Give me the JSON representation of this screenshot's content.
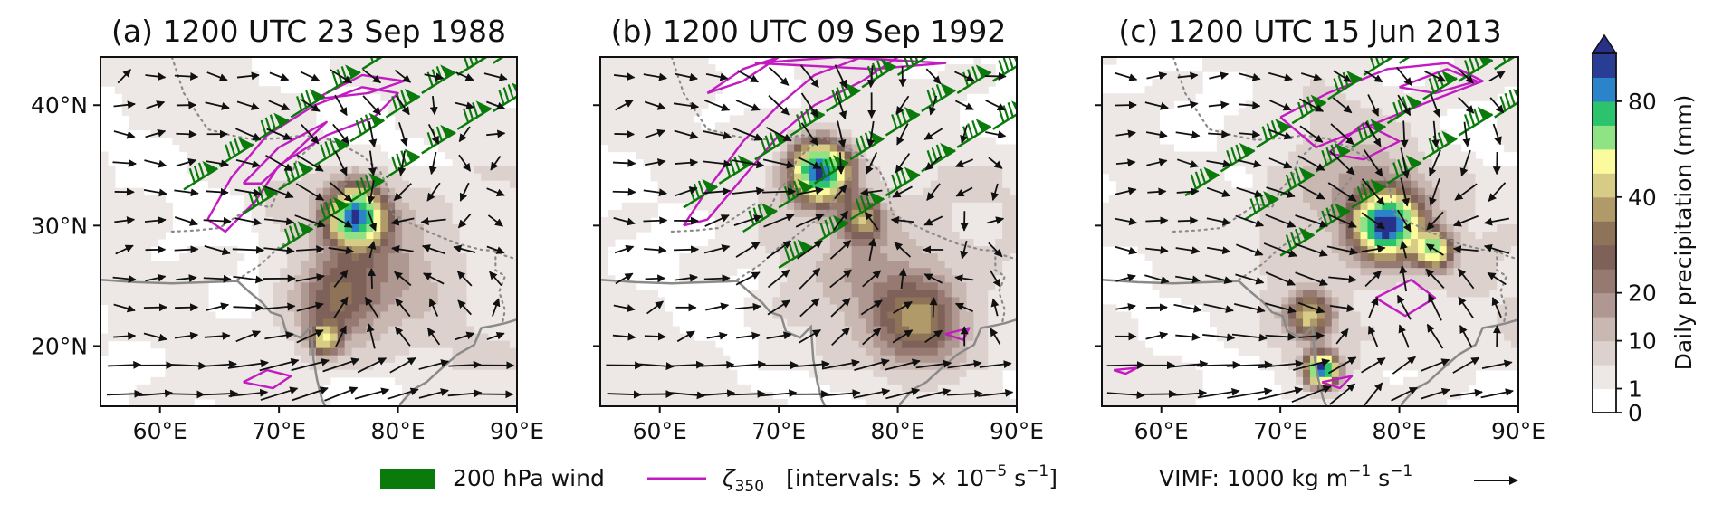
{
  "chart_data": [
    {
      "type": "heatmap",
      "title": "(a) 1200 UTC 23 Sep 1988",
      "x_ticks": [
        "60°E",
        "70°E",
        "80°E",
        "90°E"
      ],
      "y_ticks": [
        "40°N",
        "30°N",
        "20°N"
      ],
      "lon_range": [
        55,
        90
      ],
      "lat_range": [
        15,
        44
      ],
      "precip_centers": [
        {
          "lon": 76.5,
          "lat": 30.8,
          "peak_mm": 85,
          "spread": 1.6
        },
        {
          "lon": 74.8,
          "lat": 23.8,
          "peak_mm": 25,
          "spread": 2.3
        },
        {
          "lon": 73.8,
          "lat": 20.5,
          "peak_mm": 42,
          "spread": 0.9
        },
        {
          "lon": 79.0,
          "lat": 27.0,
          "peak_mm": 12,
          "spread": 3.5
        }
      ],
      "wind_barb_region": "northwest-southeast band 38°N–44°N over Pakistan/NW India",
      "vorticity_contour_region": "elongated band along 30°N–40°N, 65°E–80°E"
    },
    {
      "type": "heatmap",
      "title": "(b) 1200 UTC 09 Sep 1992",
      "x_ticks": [
        "60°E",
        "70°E",
        "80°E",
        "90°E"
      ],
      "y_ticks": [],
      "lon_range": [
        55,
        90
      ],
      "lat_range": [
        15,
        44
      ],
      "precip_centers": [
        {
          "lon": 73.5,
          "lat": 34.5,
          "peak_mm": 90,
          "spread": 1.7
        },
        {
          "lon": 77.0,
          "lat": 30.5,
          "peak_mm": 35,
          "spread": 1.2
        },
        {
          "lon": 82.0,
          "lat": 22.0,
          "peak_mm": 30,
          "spread": 2.5
        },
        {
          "lon": 78.5,
          "lat": 26.0,
          "peak_mm": 12,
          "spread": 3.5
        }
      ],
      "wind_barb_region": "band 37°N–44°N, 55°E–90°E",
      "vorticity_contour_region": "band 30°N–42°N, 62°E–78°E"
    },
    {
      "type": "heatmap",
      "title": "(c) 1200 UTC 15 Jun 2013",
      "x_ticks": [
        "60°E",
        "70°E",
        "80°E",
        "90°E"
      ],
      "y_ticks": [],
      "lon_range": [
        55,
        90
      ],
      "lat_range": [
        15,
        44
      ],
      "precip_centers": [
        {
          "lon": 79.0,
          "lat": 30.0,
          "peak_mm": 90,
          "spread": 1.8
        },
        {
          "lon": 83.0,
          "lat": 28.0,
          "peak_mm": 60,
          "spread": 1.0
        },
        {
          "lon": 73.5,
          "lat": 18.0,
          "peak_mm": 90,
          "spread": 0.9
        },
        {
          "lon": 72.5,
          "lat": 22.5,
          "peak_mm": 40,
          "spread": 1.3
        },
        {
          "lon": 76.0,
          "lat": 33.0,
          "peak_mm": 10,
          "spread": 4.5
        }
      ],
      "wind_barb_region": "band 35°N–44°N, 55°E–88°E",
      "vorticity_contour_region": "band 33°N–42°N, 68°E–85°E"
    }
  ],
  "legend": {
    "wind_label": "200 hPa wind",
    "vort_symbol": "ζ",
    "vort_subscript": "350",
    "vort_text": "[intervals: 5 × 10",
    "vort_exp1": "−5",
    "vort_unit": " s",
    "vort_exp2": "−1",
    "vort_close": "]",
    "vimf_text": "VIMF: 1000 kg m",
    "vimf_exp1": "−1",
    "vimf_unit": " s",
    "vimf_exp2": "−1"
  },
  "colorbar": {
    "label": "Daily precipitation (mm)",
    "ticks": [
      "0",
      "1",
      "10",
      "20",
      "40",
      "80"
    ],
    "bounds": [
      0,
      1,
      5,
      10,
      15,
      20,
      25,
      30,
      35,
      40,
      50,
      60,
      70,
      80,
      90
    ],
    "colors": [
      "#ffffff",
      "#ede8e6",
      "#ddd1cd",
      "#c9b7b1",
      "#b09892",
      "#967a72",
      "#7e6158",
      "#8e7358",
      "#b19a6a",
      "#d7cc86",
      "#fbfa9c",
      "#8fe385",
      "#2bc46c",
      "#2b84c9",
      "#2a3d94"
    ],
    "extend_color": "#27318a"
  },
  "colors": {
    "wind": "#0a7a0a",
    "vorticity": "#c21bc2",
    "coast": "#8a8a8a",
    "border": "#8a8a8a"
  }
}
